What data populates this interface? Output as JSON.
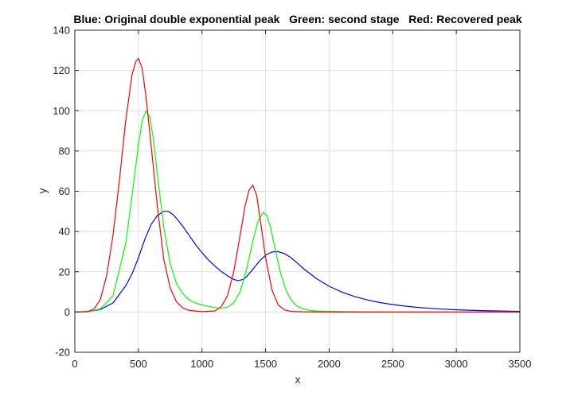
{
  "chart_data": {
    "type": "line",
    "title": "Blue: Original double exponential peak   Green: second stage   Red: Recovered peak",
    "xlabel": "x",
    "ylabel": "y",
    "xlim": [
      0,
      3500
    ],
    "ylim": [
      -20,
      140
    ],
    "xticks": [
      0,
      500,
      1000,
      1500,
      2000,
      2500,
      3000,
      3500
    ],
    "yticks": [
      -20,
      0,
      20,
      40,
      60,
      80,
      100,
      120,
      140
    ],
    "grid": true,
    "legend": "none",
    "colors": {
      "blue": "#0000ff",
      "green": "#00ff00",
      "red": "#ff0000"
    },
    "series": [
      {
        "color": "#0000ff",
        "x": [
          0,
          100,
          200,
          300,
          400,
          450,
          500,
          550,
          600,
          650,
          700,
          735,
          770,
          800,
          850,
          900,
          950,
          1000,
          1050,
          1100,
          1150,
          1200,
          1250,
          1285,
          1320,
          1350,
          1400,
          1450,
          1500,
          1550,
          1600,
          1650,
          1700,
          1750,
          1800,
          1900,
          2000,
          2100,
          2200,
          2300,
          2400,
          2500,
          2600,
          2700,
          2800,
          2900,
          3000,
          3200,
          3500
        ],
        "y": [
          0,
          0.2,
          1.2,
          4.5,
          13,
          19,
          27,
          36,
          43.5,
          48,
          50,
          50,
          48.5,
          46.5,
          42.5,
          38,
          33.5,
          29.5,
          25.9,
          22.9,
          20.2,
          18,
          16.2,
          15.6,
          16.1,
          17.5,
          21.2,
          25.2,
          28.2,
          29.8,
          30,
          29,
          27,
          24.3,
          21.5,
          16.6,
          12.8,
          9.9,
          7.7,
          6,
          4.7,
          3.7,
          2.9,
          2.3,
          1.8,
          1.4,
          1.1,
          0.7,
          0.3
        ]
      },
      {
        "color": "#00ff00",
        "x": [
          0,
          100,
          200,
          300,
          400,
          450,
          500,
          530,
          560,
          590,
          620,
          650,
          700,
          750,
          800,
          850,
          900,
          950,
          1000,
          1050,
          1100,
          1150,
          1200,
          1250,
          1300,
          1350,
          1400,
          1440,
          1480,
          1510,
          1540,
          1580,
          1620,
          1660,
          1700,
          1750,
          1800,
          1850,
          1900,
          2000,
          2200,
          2500,
          3000,
          3500
        ],
        "y": [
          0,
          0.1,
          1.5,
          8,
          34,
          58,
          83,
          95,
          100,
          97,
          85,
          68,
          42,
          24,
          14,
          9,
          6,
          4.5,
          3.5,
          2.8,
          2.2,
          2,
          2.4,
          4.5,
          10,
          21,
          35,
          45,
          49.5,
          48,
          42,
          30,
          19,
          11,
          6,
          2.8,
          1.4,
          0.8,
          0.5,
          0.3,
          0.1,
          0,
          0,
          0
        ]
      },
      {
        "color": "#ff0000",
        "x": [
          0,
          100,
          150,
          200,
          250,
          300,
          350,
          400,
          450,
          480,
          500,
          530,
          560,
          600,
          650,
          700,
          750,
          800,
          850,
          900,
          1000,
          1100,
          1150,
          1200,
          1250,
          1300,
          1340,
          1370,
          1400,
          1430,
          1460,
          1500,
          1550,
          1600,
          1650,
          1700,
          1800,
          2000,
          2500,
          3000,
          3500
        ],
        "y": [
          0,
          0.2,
          1.5,
          6,
          18,
          38,
          65,
          95,
          118,
          124.5,
          126,
          121,
          107,
          83,
          52,
          26,
          12,
          5,
          2,
          0.8,
          0.2,
          0.5,
          2.5,
          8,
          20,
          38,
          53,
          60.5,
          63,
          58,
          45,
          27,
          11,
          3.5,
          1,
          0.3,
          0.1,
          0,
          0,
          0,
          0
        ]
      }
    ]
  }
}
